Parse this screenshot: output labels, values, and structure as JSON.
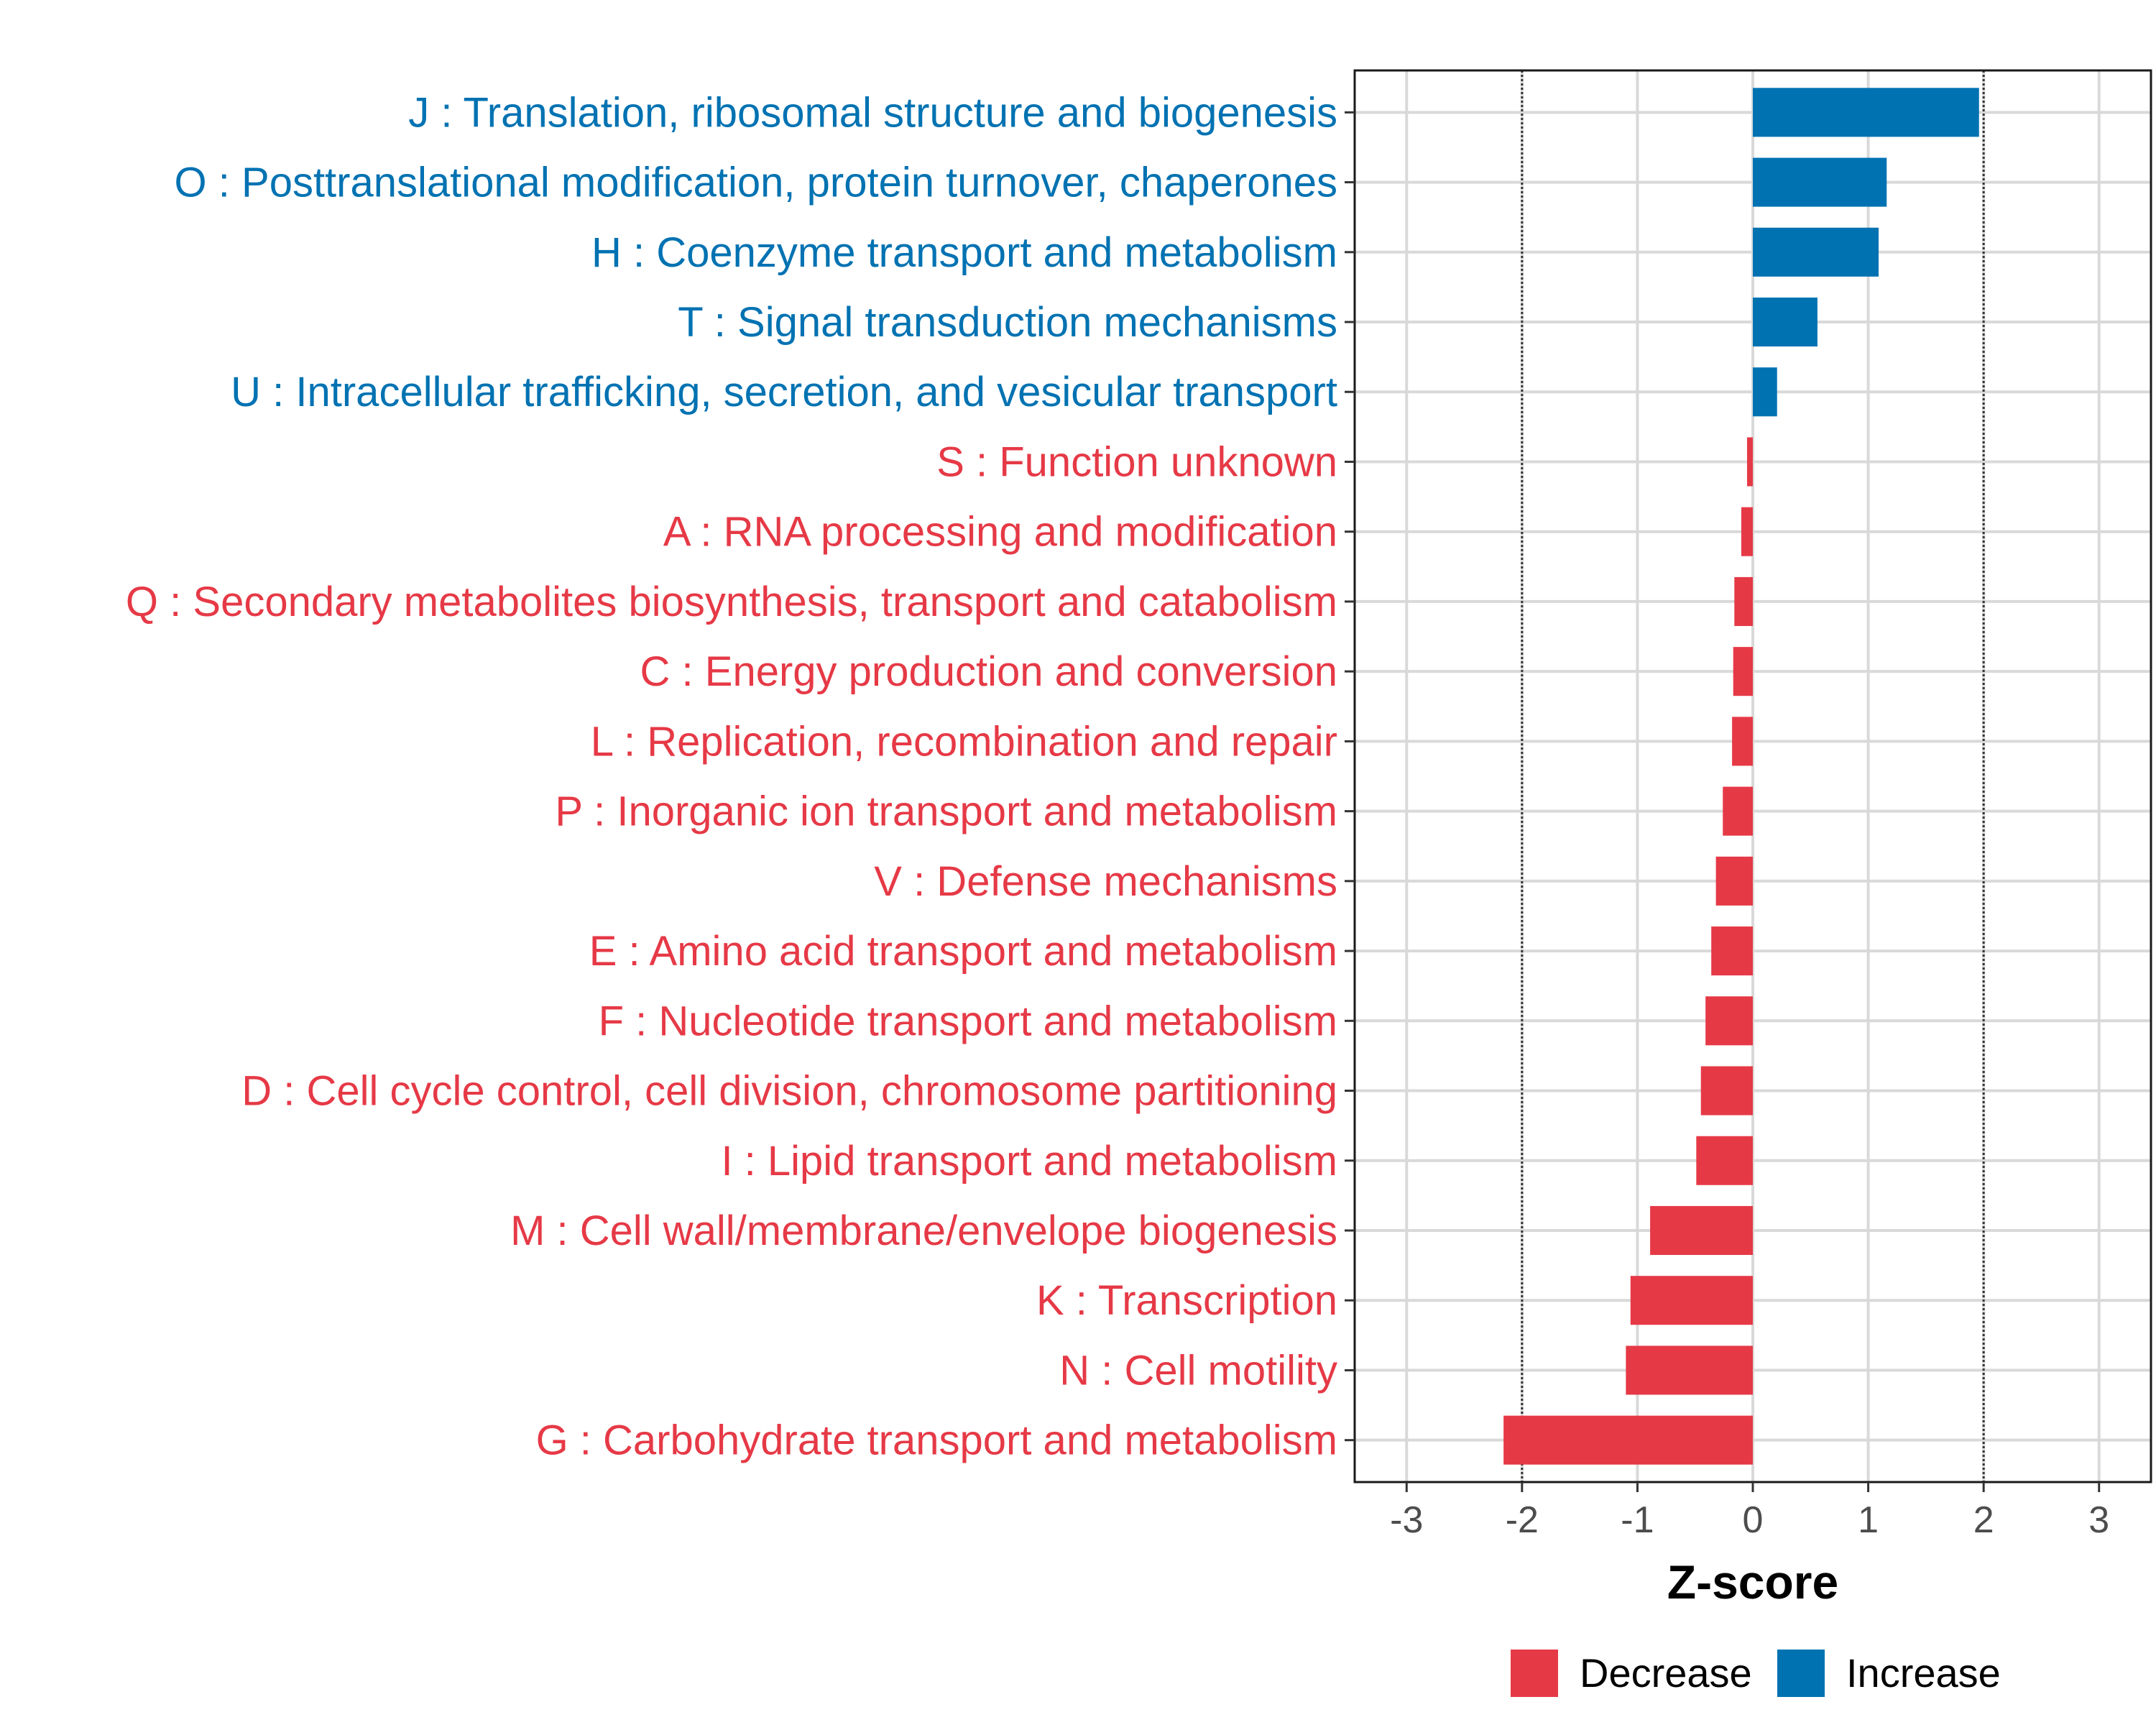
{
  "chart_data": {
    "type": "bar",
    "orientation": "horizontal",
    "title": "",
    "xlabel": "Z-score",
    "ylabel": "",
    "xlim": [
      -3.45,
      3.45
    ],
    "xticks": [
      -3,
      -2,
      -1,
      0,
      1,
      2,
      3
    ],
    "xtick_labels": [
      "-3",
      "-2",
      "-1",
      "0",
      "1",
      "2",
      "3"
    ],
    "reference_lines": [
      -2,
      2
    ],
    "grid": true,
    "legend_position": "bottom",
    "colors": {
      "Increase": "#0072b2",
      "Decrease": "#e63946"
    },
    "legend": [
      {
        "name": "Decrease",
        "color": "#e63946"
      },
      {
        "name": "Increase",
        "color": "#0072b2"
      }
    ],
    "categories": [
      "J : Translation, ribosomal structure and biogenesis",
      "O : Posttranslational modification, protein turnover, chaperones",
      "H : Coenzyme transport and metabolism",
      "T : Signal transduction mechanisms",
      "U : Intracellular trafficking, secretion, and vesicular transport",
      "S : Function unknown",
      "A : RNA processing and modification",
      "Q : Secondary metabolites biosynthesis, transport and catabolism",
      "C : Energy production and conversion",
      "L : Replication, recombination and repair",
      "P : Inorganic ion transport and metabolism",
      "V : Defense mechanisms",
      "E : Amino acid transport and metabolism",
      "F : Nucleotide transport and metabolism",
      "D : Cell cycle control, cell division, chromosome partitioning",
      "I : Lipid transport and metabolism",
      "M : Cell wall/membrane/envelope biogenesis",
      "K : Transcription",
      "N : Cell motility",
      "G : Carbohydrate transport and metabolism"
    ],
    "values": [
      1.96,
      1.16,
      1.09,
      0.56,
      0.21,
      -0.05,
      -0.1,
      -0.16,
      -0.17,
      -0.18,
      -0.26,
      -0.32,
      -0.36,
      -0.41,
      -0.45,
      -0.49,
      -0.89,
      -1.06,
      -1.1,
      -2.16
    ],
    "groups": [
      "Increase",
      "Increase",
      "Increase",
      "Increase",
      "Increase",
      "Decrease",
      "Decrease",
      "Decrease",
      "Decrease",
      "Decrease",
      "Decrease",
      "Decrease",
      "Decrease",
      "Decrease",
      "Decrease",
      "Decrease",
      "Decrease",
      "Decrease",
      "Decrease",
      "Decrease"
    ]
  }
}
